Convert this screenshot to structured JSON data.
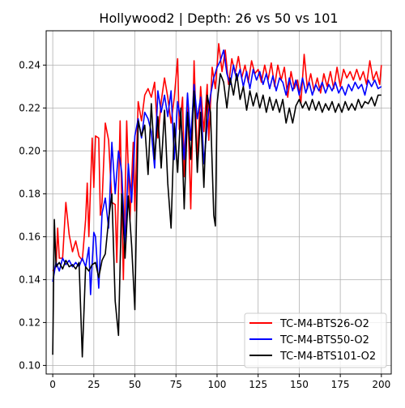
{
  "chart_data": {
    "type": "line",
    "title": "Hollywood2 | Depth: 26 vs 50 vs 101",
    "xlabel": "",
    "ylabel": "",
    "xlim": [
      -4,
      206
    ],
    "ylim": [
      0.096,
      0.256
    ],
    "xticks": [
      0,
      25,
      50,
      75,
      100,
      125,
      150,
      175,
      200
    ],
    "yticks": [
      0.1,
      0.12,
      0.14,
      0.16,
      0.18,
      0.2,
      0.22,
      0.24
    ],
    "ytick_labels": [
      "0.10",
      "0.12",
      "0.14",
      "0.16",
      "0.18",
      "0.20",
      "0.22",
      "0.24"
    ],
    "grid": true,
    "legend_position": "lower-right",
    "series": [
      {
        "name": "TC-M4-BTS26-O2",
        "color": "#ff0000",
        "points": [
          [
            0,
            0.144
          ],
          [
            2,
            0.146
          ],
          [
            3,
            0.164
          ],
          [
            4,
            0.15
          ],
          [
            6,
            0.15
          ],
          [
            8,
            0.176
          ],
          [
            10,
            0.161
          ],
          [
            12,
            0.153
          ],
          [
            14,
            0.158
          ],
          [
            16,
            0.151
          ],
          [
            18,
            0.149
          ],
          [
            20,
            0.168
          ],
          [
            21,
            0.185
          ],
          [
            22,
            0.16
          ],
          [
            24,
            0.206
          ],
          [
            25,
            0.183
          ],
          [
            26,
            0.207
          ],
          [
            28,
            0.206
          ],
          [
            29,
            0.17
          ],
          [
            30,
            0.176
          ],
          [
            32,
            0.213
          ],
          [
            34,
            0.205
          ],
          [
            36,
            0.176
          ],
          [
            38,
            0.175
          ],
          [
            39,
            0.148
          ],
          [
            41,
            0.214
          ],
          [
            43,
            0.14
          ],
          [
            45,
            0.214
          ],
          [
            47,
            0.168
          ],
          [
            49,
            0.204
          ],
          [
            50,
            0.172
          ],
          [
            52,
            0.223
          ],
          [
            54,
            0.214
          ],
          [
            56,
            0.226
          ],
          [
            58,
            0.229
          ],
          [
            60,
            0.225
          ],
          [
            62,
            0.232
          ],
          [
            64,
            0.206
          ],
          [
            66,
            0.223
          ],
          [
            68,
            0.234
          ],
          [
            70,
            0.225
          ],
          [
            72,
            0.213
          ],
          [
            74,
            0.225
          ],
          [
            76,
            0.243
          ],
          [
            77,
            0.21
          ],
          [
            79,
            0.225
          ],
          [
            80,
            0.188
          ],
          [
            82,
            0.226
          ],
          [
            84,
            0.173
          ],
          [
            86,
            0.242
          ],
          [
            88,
            0.195
          ],
          [
            90,
            0.23
          ],
          [
            92,
            0.209
          ],
          [
            94,
            0.231
          ],
          [
            95,
            0.205
          ],
          [
            97,
            0.239
          ],
          [
            99,
            0.229
          ],
          [
            101,
            0.25
          ],
          [
            103,
            0.237
          ],
          [
            105,
            0.247
          ],
          [
            107,
            0.231
          ],
          [
            109,
            0.243
          ],
          [
            111,
            0.236
          ],
          [
            113,
            0.244
          ],
          [
            115,
            0.234
          ],
          [
            117,
            0.24
          ],
          [
            119,
            0.232
          ],
          [
            121,
            0.242
          ],
          [
            123,
            0.236
          ],
          [
            125,
            0.238
          ],
          [
            127,
            0.232
          ],
          [
            129,
            0.24
          ],
          [
            131,
            0.233
          ],
          [
            133,
            0.241
          ],
          [
            135,
            0.23
          ],
          [
            137,
            0.24
          ],
          [
            139,
            0.233
          ],
          [
            141,
            0.239
          ],
          [
            143,
            0.225
          ],
          [
            145,
            0.237
          ],
          [
            147,
            0.229
          ],
          [
            149,
            0.233
          ],
          [
            151,
            0.222
          ],
          [
            153,
            0.245
          ],
          [
            155,
            0.229
          ],
          [
            157,
            0.236
          ],
          [
            159,
            0.228
          ],
          [
            161,
            0.234
          ],
          [
            163,
            0.227
          ],
          [
            165,
            0.236
          ],
          [
            167,
            0.23
          ],
          [
            169,
            0.237
          ],
          [
            171,
            0.229
          ],
          [
            173,
            0.239
          ],
          [
            175,
            0.23
          ],
          [
            177,
            0.238
          ],
          [
            179,
            0.234
          ],
          [
            181,
            0.237
          ],
          [
            183,
            0.233
          ],
          [
            185,
            0.238
          ],
          [
            187,
            0.233
          ],
          [
            189,
            0.237
          ],
          [
            191,
            0.231
          ],
          [
            193,
            0.242
          ],
          [
            195,
            0.233
          ],
          [
            197,
            0.237
          ],
          [
            199,
            0.231
          ],
          [
            200,
            0.24
          ]
        ]
      },
      {
        "name": "TC-M4-BTS50-O2",
        "color": "#0000ff",
        "points": [
          [
            0,
            0.139
          ],
          [
            2,
            0.148
          ],
          [
            4,
            0.144
          ],
          [
            6,
            0.15
          ],
          [
            8,
            0.147
          ],
          [
            10,
            0.149
          ],
          [
            12,
            0.146
          ],
          [
            14,
            0.148
          ],
          [
            16,
            0.146
          ],
          [
            18,
            0.15
          ],
          [
            20,
            0.146
          ],
          [
            22,
            0.155
          ],
          [
            23,
            0.133
          ],
          [
            25,
            0.162
          ],
          [
            26,
            0.16
          ],
          [
            28,
            0.136
          ],
          [
            30,
            0.171
          ],
          [
            32,
            0.178
          ],
          [
            34,
            0.164
          ],
          [
            36,
            0.204
          ],
          [
            38,
            0.18
          ],
          [
            40,
            0.2
          ],
          [
            42,
            0.19
          ],
          [
            44,
            0.156
          ],
          [
            46,
            0.194
          ],
          [
            48,
            0.176
          ],
          [
            50,
            0.207
          ],
          [
            52,
            0.215
          ],
          [
            54,
            0.206
          ],
          [
            56,
            0.218
          ],
          [
            58,
            0.215
          ],
          [
            60,
            0.209
          ],
          [
            62,
            0.192
          ],
          [
            64,
            0.228
          ],
          [
            66,
            0.218
          ],
          [
            68,
            0.226
          ],
          [
            70,
            0.216
          ],
          [
            72,
            0.228
          ],
          [
            74,
            0.196
          ],
          [
            76,
            0.223
          ],
          [
            78,
            0.214
          ],
          [
            80,
            0.196
          ],
          [
            82,
            0.227
          ],
          [
            84,
            0.205
          ],
          [
            86,
            0.231
          ],
          [
            88,
            0.215
          ],
          [
            90,
            0.225
          ],
          [
            92,
            0.194
          ],
          [
            94,
            0.212
          ],
          [
            96,
            0.226
          ],
          [
            98,
            0.234
          ],
          [
            100,
            0.239
          ],
          [
            102,
            0.242
          ],
          [
            104,
            0.247
          ],
          [
            106,
            0.236
          ],
          [
            108,
            0.231
          ],
          [
            110,
            0.24
          ],
          [
            112,
            0.233
          ],
          [
            114,
            0.238
          ],
          [
            116,
            0.23
          ],
          [
            118,
            0.237
          ],
          [
            120,
            0.229
          ],
          [
            122,
            0.238
          ],
          [
            124,
            0.233
          ],
          [
            126,
            0.237
          ],
          [
            128,
            0.231
          ],
          [
            130,
            0.236
          ],
          [
            132,
            0.229
          ],
          [
            134,
            0.235
          ],
          [
            136,
            0.228
          ],
          [
            138,
            0.234
          ],
          [
            140,
            0.232
          ],
          [
            142,
            0.226
          ],
          [
            144,
            0.234
          ],
          [
            146,
            0.228
          ],
          [
            148,
            0.233
          ],
          [
            150,
            0.226
          ],
          [
            152,
            0.234
          ],
          [
            154,
            0.227
          ],
          [
            156,
            0.232
          ],
          [
            158,
            0.226
          ],
          [
            160,
            0.231
          ],
          [
            162,
            0.228
          ],
          [
            164,
            0.232
          ],
          [
            166,
            0.227
          ],
          [
            168,
            0.231
          ],
          [
            170,
            0.228
          ],
          [
            172,
            0.232
          ],
          [
            174,
            0.227
          ],
          [
            176,
            0.23
          ],
          [
            178,
            0.226
          ],
          [
            180,
            0.231
          ],
          [
            182,
            0.228
          ],
          [
            184,
            0.232
          ],
          [
            186,
            0.229
          ],
          [
            188,
            0.231
          ],
          [
            190,
            0.226
          ],
          [
            192,
            0.233
          ],
          [
            194,
            0.23
          ],
          [
            196,
            0.233
          ],
          [
            198,
            0.229
          ],
          [
            200,
            0.23
          ]
        ]
      },
      {
        "name": "TC-M4-BTS101-O2",
        "color": "#000000",
        "points": [
          [
            0,
            0.105
          ],
          [
            1,
            0.168
          ],
          [
            2,
            0.146
          ],
          [
            4,
            0.148
          ],
          [
            6,
            0.145
          ],
          [
            8,
            0.149
          ],
          [
            10,
            0.146
          ],
          [
            12,
            0.147
          ],
          [
            14,
            0.145
          ],
          [
            16,
            0.148
          ],
          [
            18,
            0.104
          ],
          [
            20,
            0.146
          ],
          [
            22,
            0.144
          ],
          [
            24,
            0.147
          ],
          [
            26,
            0.148
          ],
          [
            28,
            0.141
          ],
          [
            30,
            0.149
          ],
          [
            32,
            0.152
          ],
          [
            34,
            0.168
          ],
          [
            36,
            0.18
          ],
          [
            38,
            0.13
          ],
          [
            40,
            0.114
          ],
          [
            42,
            0.18
          ],
          [
            44,
            0.15
          ],
          [
            46,
            0.179
          ],
          [
            48,
            0.156
          ],
          [
            50,
            0.126
          ],
          [
            52,
            0.214
          ],
          [
            54,
            0.207
          ],
          [
            56,
            0.212
          ],
          [
            58,
            0.189
          ],
          [
            60,
            0.222
          ],
          [
            62,
            0.196
          ],
          [
            64,
            0.216
          ],
          [
            66,
            0.192
          ],
          [
            68,
            0.219
          ],
          [
            70,
            0.185
          ],
          [
            72,
            0.164
          ],
          [
            74,
            0.213
          ],
          [
            76,
            0.19
          ],
          [
            78,
            0.22
          ],
          [
            80,
            0.173
          ],
          [
            82,
            0.218
          ],
          [
            84,
            0.196
          ],
          [
            86,
            0.228
          ],
          [
            88,
            0.19
          ],
          [
            90,
            0.218
          ],
          [
            92,
            0.183
          ],
          [
            94,
            0.226
          ],
          [
            96,
            0.218
          ],
          [
            98,
            0.17
          ],
          [
            99,
            0.165
          ],
          [
            100,
            0.222
          ],
          [
            102,
            0.236
          ],
          [
            104,
            0.232
          ],
          [
            106,
            0.22
          ],
          [
            108,
            0.234
          ],
          [
            110,
            0.226
          ],
          [
            112,
            0.236
          ],
          [
            114,
            0.224
          ],
          [
            116,
            0.23
          ],
          [
            118,
            0.219
          ],
          [
            120,
            0.228
          ],
          [
            122,
            0.221
          ],
          [
            124,
            0.227
          ],
          [
            126,
            0.22
          ],
          [
            128,
            0.226
          ],
          [
            130,
            0.218
          ],
          [
            132,
            0.225
          ],
          [
            134,
            0.219
          ],
          [
            136,
            0.224
          ],
          [
            138,
            0.218
          ],
          [
            140,
            0.224
          ],
          [
            142,
            0.213
          ],
          [
            144,
            0.22
          ],
          [
            146,
            0.213
          ],
          [
            148,
            0.221
          ],
          [
            150,
            0.224
          ],
          [
            152,
            0.22
          ],
          [
            154,
            0.223
          ],
          [
            156,
            0.219
          ],
          [
            158,
            0.224
          ],
          [
            160,
            0.219
          ],
          [
            162,
            0.223
          ],
          [
            164,
            0.218
          ],
          [
            166,
            0.222
          ],
          [
            168,
            0.219
          ],
          [
            170,
            0.223
          ],
          [
            172,
            0.218
          ],
          [
            174,
            0.222
          ],
          [
            176,
            0.218
          ],
          [
            178,
            0.223
          ],
          [
            180,
            0.219
          ],
          [
            182,
            0.222
          ],
          [
            184,
            0.219
          ],
          [
            186,
            0.224
          ],
          [
            188,
            0.22
          ],
          [
            190,
            0.223
          ],
          [
            192,
            0.222
          ],
          [
            194,
            0.225
          ],
          [
            196,
            0.221
          ],
          [
            198,
            0.226
          ],
          [
            200,
            0.226
          ]
        ]
      }
    ]
  }
}
